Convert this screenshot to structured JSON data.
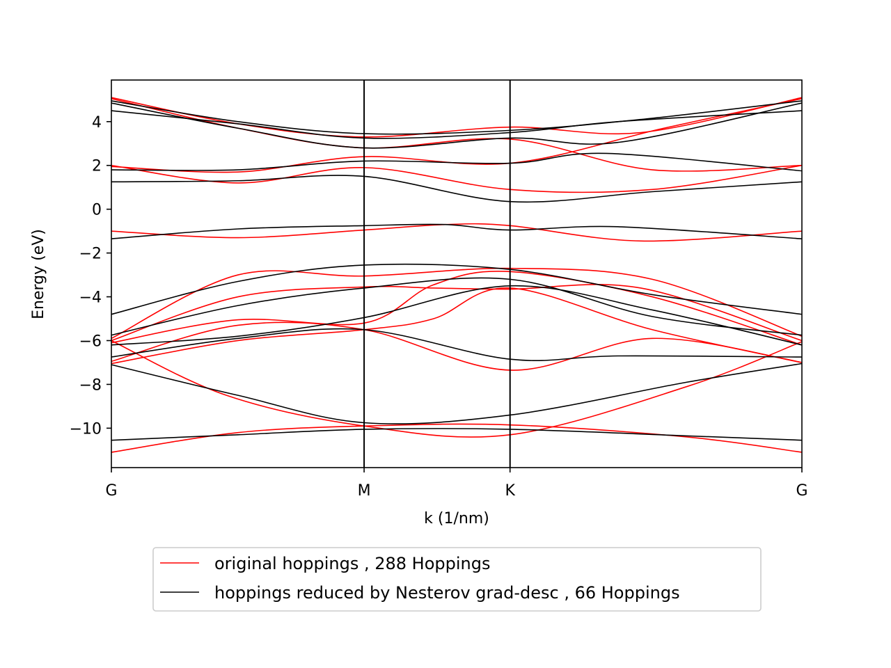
{
  "chart_data": {
    "type": "line",
    "title": "",
    "xlabel": "k (1/nm)",
    "ylabel": "Energy (eV)",
    "xlim": [
      0,
      3
    ],
    "ylim": [
      -11.8,
      5.9
    ],
    "x_ticks": [
      {
        "label": "G",
        "value": 0
      },
      {
        "label": "M",
        "value": 1.098
      },
      {
        "label": "K",
        "value": 1.732
      },
      {
        "label": "G",
        "value": 3
      }
    ],
    "y_ticks": [
      {
        "label": "4",
        "value": 4
      },
      {
        "label": "2",
        "value": 2
      },
      {
        "label": "0",
        "value": 0
      },
      {
        "label": "−2",
        "value": -2
      },
      {
        "label": "−4",
        "value": -4
      },
      {
        "label": "−6",
        "value": -6
      },
      {
        "label": "−8",
        "value": -8
      },
      {
        "label": "−10",
        "value": -10
      }
    ],
    "high_symmetry_lines": [
      1.098,
      1.732
    ],
    "grid": false,
    "legend_position": "below",
    "series": [
      {
        "name": "original hoppings , 288 Hoppings",
        "color": "#ff0000",
        "bands": [
          [
            [
              0,
              5.1
            ],
            [
              0.55,
              3.9
            ],
            [
              1.098,
              3.3
            ],
            [
              1.732,
              3.75
            ],
            [
              2.3,
              3.5
            ],
            [
              3,
              5.1
            ]
          ],
          [
            [
              0,
              5.05
            ],
            [
              0.55,
              3.7
            ],
            [
              1.098,
              2.8
            ],
            [
              1.732,
              3.2
            ],
            [
              2.35,
              1.8
            ],
            [
              3,
              2.0
            ]
          ],
          [
            [
              0,
              2.0
            ],
            [
              0.55,
              1.2
            ],
            [
              1.098,
              1.9
            ],
            [
              1.732,
              0.9
            ],
            [
              2.35,
              0.9
            ],
            [
              3,
              2.0
            ]
          ],
          [
            [
              0,
              1.95
            ],
            [
              0.55,
              1.7
            ],
            [
              1.098,
              2.4
            ],
            [
              1.732,
              2.1
            ],
            [
              2.4,
              3.7
            ],
            [
              3,
              5.05
            ]
          ],
          [
            [
              0,
              -1.0
            ],
            [
              0.55,
              -1.3
            ],
            [
              1.098,
              -0.95
            ],
            [
              1.45,
              -0.7
            ],
            [
              1.732,
              -0.75
            ],
            [
              2.3,
              -1.45
            ],
            [
              3,
              -1.0
            ]
          ],
          [
            [
              0,
              -5.9
            ],
            [
              0.55,
              -3.0
            ],
            [
              1.098,
              -3.05
            ],
            [
              1.732,
              -2.7
            ],
            [
              2.35,
              -3.2
            ],
            [
              3,
              -5.8
            ]
          ],
          [
            [
              0,
              -6.0
            ],
            [
              0.55,
              -4.0
            ],
            [
              1.098,
              -3.55
            ],
            [
              1.4,
              -3.6
            ],
            [
              1.732,
              -3.65
            ],
            [
              2.3,
              -3.6
            ],
            [
              3,
              -6.0
            ]
          ],
          [
            [
              0,
              -6.1
            ],
            [
              0.55,
              -5.05
            ],
            [
              1.098,
              -5.2
            ],
            [
              1.4,
              -3.45
            ],
            [
              1.732,
              -2.85
            ],
            [
              2.35,
              -4.0
            ],
            [
              3,
              -6.2
            ]
          ],
          [
            [
              0,
              -6.95
            ],
            [
              0.55,
              -5.3
            ],
            [
              1.098,
              -5.5
            ],
            [
              1.732,
              -7.35
            ],
            [
              2.35,
              -5.9
            ],
            [
              3,
              -7.0
            ]
          ],
          [
            [
              0,
              -7.05
            ],
            [
              0.55,
              -6.0
            ],
            [
              1.098,
              -5.5
            ],
            [
              1.4,
              -5.0
            ],
            [
              1.732,
              -3.6
            ],
            [
              2.35,
              -5.5
            ],
            [
              3,
              -7.0
            ]
          ],
          [
            [
              0,
              -6.0
            ],
            [
              0.5,
              -8.5
            ],
            [
              1.098,
              -9.9
            ],
            [
              1.732,
              -10.3
            ],
            [
              2.5,
              -8.1
            ],
            [
              3,
              -6.05
            ]
          ],
          [
            [
              0,
              -11.1
            ],
            [
              0.55,
              -10.2
            ],
            [
              1.098,
              -9.9
            ],
            [
              1.732,
              -9.85
            ],
            [
              2.5,
              -10.4
            ],
            [
              3,
              -11.1
            ]
          ]
        ]
      },
      {
        "name": "hoppings reduced by Nesterov grad-desc , 66 Hoppings",
        "color": "#000000",
        "bands": [
          [
            [
              0,
              4.95
            ],
            [
              0.55,
              4.0
            ],
            [
              1.098,
              3.45
            ],
            [
              1.732,
              3.6
            ],
            [
              2.3,
              4.1
            ],
            [
              3,
              4.95
            ]
          ],
          [
            [
              0,
              4.85
            ],
            [
              0.55,
              3.7
            ],
            [
              1.098,
              2.8
            ],
            [
              1.732,
              3.25
            ],
            [
              2.2,
              3.05
            ],
            [
              3,
              4.85
            ]
          ],
          [
            [
              0,
              4.5
            ],
            [
              0.55,
              3.9
            ],
            [
              1.098,
              3.25
            ],
            [
              1.732,
              3.5
            ],
            [
              2.2,
              4.0
            ],
            [
              3,
              4.5
            ]
          ],
          [
            [
              0,
              1.8
            ],
            [
              0.55,
              1.8
            ],
            [
              1.098,
              2.2
            ],
            [
              1.732,
              2.1
            ],
            [
              2.15,
              2.55
            ],
            [
              3,
              1.75
            ]
          ],
          [
            [
              0,
              1.25
            ],
            [
              0.55,
              1.3
            ],
            [
              1.098,
              1.5
            ],
            [
              1.732,
              0.35
            ],
            [
              2.35,
              0.8
            ],
            [
              3,
              1.25
            ]
          ],
          [
            [
              0,
              -1.35
            ],
            [
              0.55,
              -0.9
            ],
            [
              1.098,
              -0.75
            ],
            [
              1.45,
              -0.7
            ],
            [
              1.732,
              -0.95
            ],
            [
              2.2,
              -0.8
            ],
            [
              3,
              -1.35
            ]
          ],
          [
            [
              0,
              -4.8
            ],
            [
              0.55,
              -3.3
            ],
            [
              1.098,
              -2.55
            ],
            [
              1.732,
              -2.75
            ],
            [
              2.35,
              -3.9
            ],
            [
              3,
              -4.8
            ]
          ],
          [
            [
              0,
              -5.75
            ],
            [
              0.55,
              -4.4
            ],
            [
              1.098,
              -3.6
            ],
            [
              1.732,
              -3.2
            ],
            [
              2.35,
              -4.9
            ],
            [
              3,
              -5.75
            ]
          ],
          [
            [
              0,
              -6.2
            ],
            [
              0.55,
              -5.8
            ],
            [
              1.098,
              -4.95
            ],
            [
              1.732,
              -3.5
            ],
            [
              2.35,
              -4.6
            ],
            [
              3,
              -6.2
            ]
          ],
          [
            [
              0,
              -6.75
            ],
            [
              0.55,
              -5.9
            ],
            [
              1.098,
              -5.5
            ],
            [
              1.732,
              -6.85
            ],
            [
              2.2,
              -6.7
            ],
            [
              3,
              -6.75
            ]
          ],
          [
            [
              0,
              -7.1
            ],
            [
              0.55,
              -8.5
            ],
            [
              1.098,
              -9.75
            ],
            [
              1.732,
              -9.4
            ],
            [
              2.5,
              -7.9
            ],
            [
              3,
              -7.05
            ]
          ],
          [
            [
              0,
              -10.55
            ],
            [
              0.55,
              -10.3
            ],
            [
              1.098,
              -10.05
            ],
            [
              1.732,
              -10.05
            ],
            [
              2.5,
              -10.35
            ],
            [
              3,
              -10.55
            ]
          ]
        ]
      }
    ]
  },
  "legend": {
    "entries": [
      {
        "label": "original hoppings , 288 Hoppings",
        "color": "#ff0000"
      },
      {
        "label": "hoppings reduced by Nesterov grad-desc , 66 Hoppings",
        "color": "#000000"
      }
    ]
  }
}
